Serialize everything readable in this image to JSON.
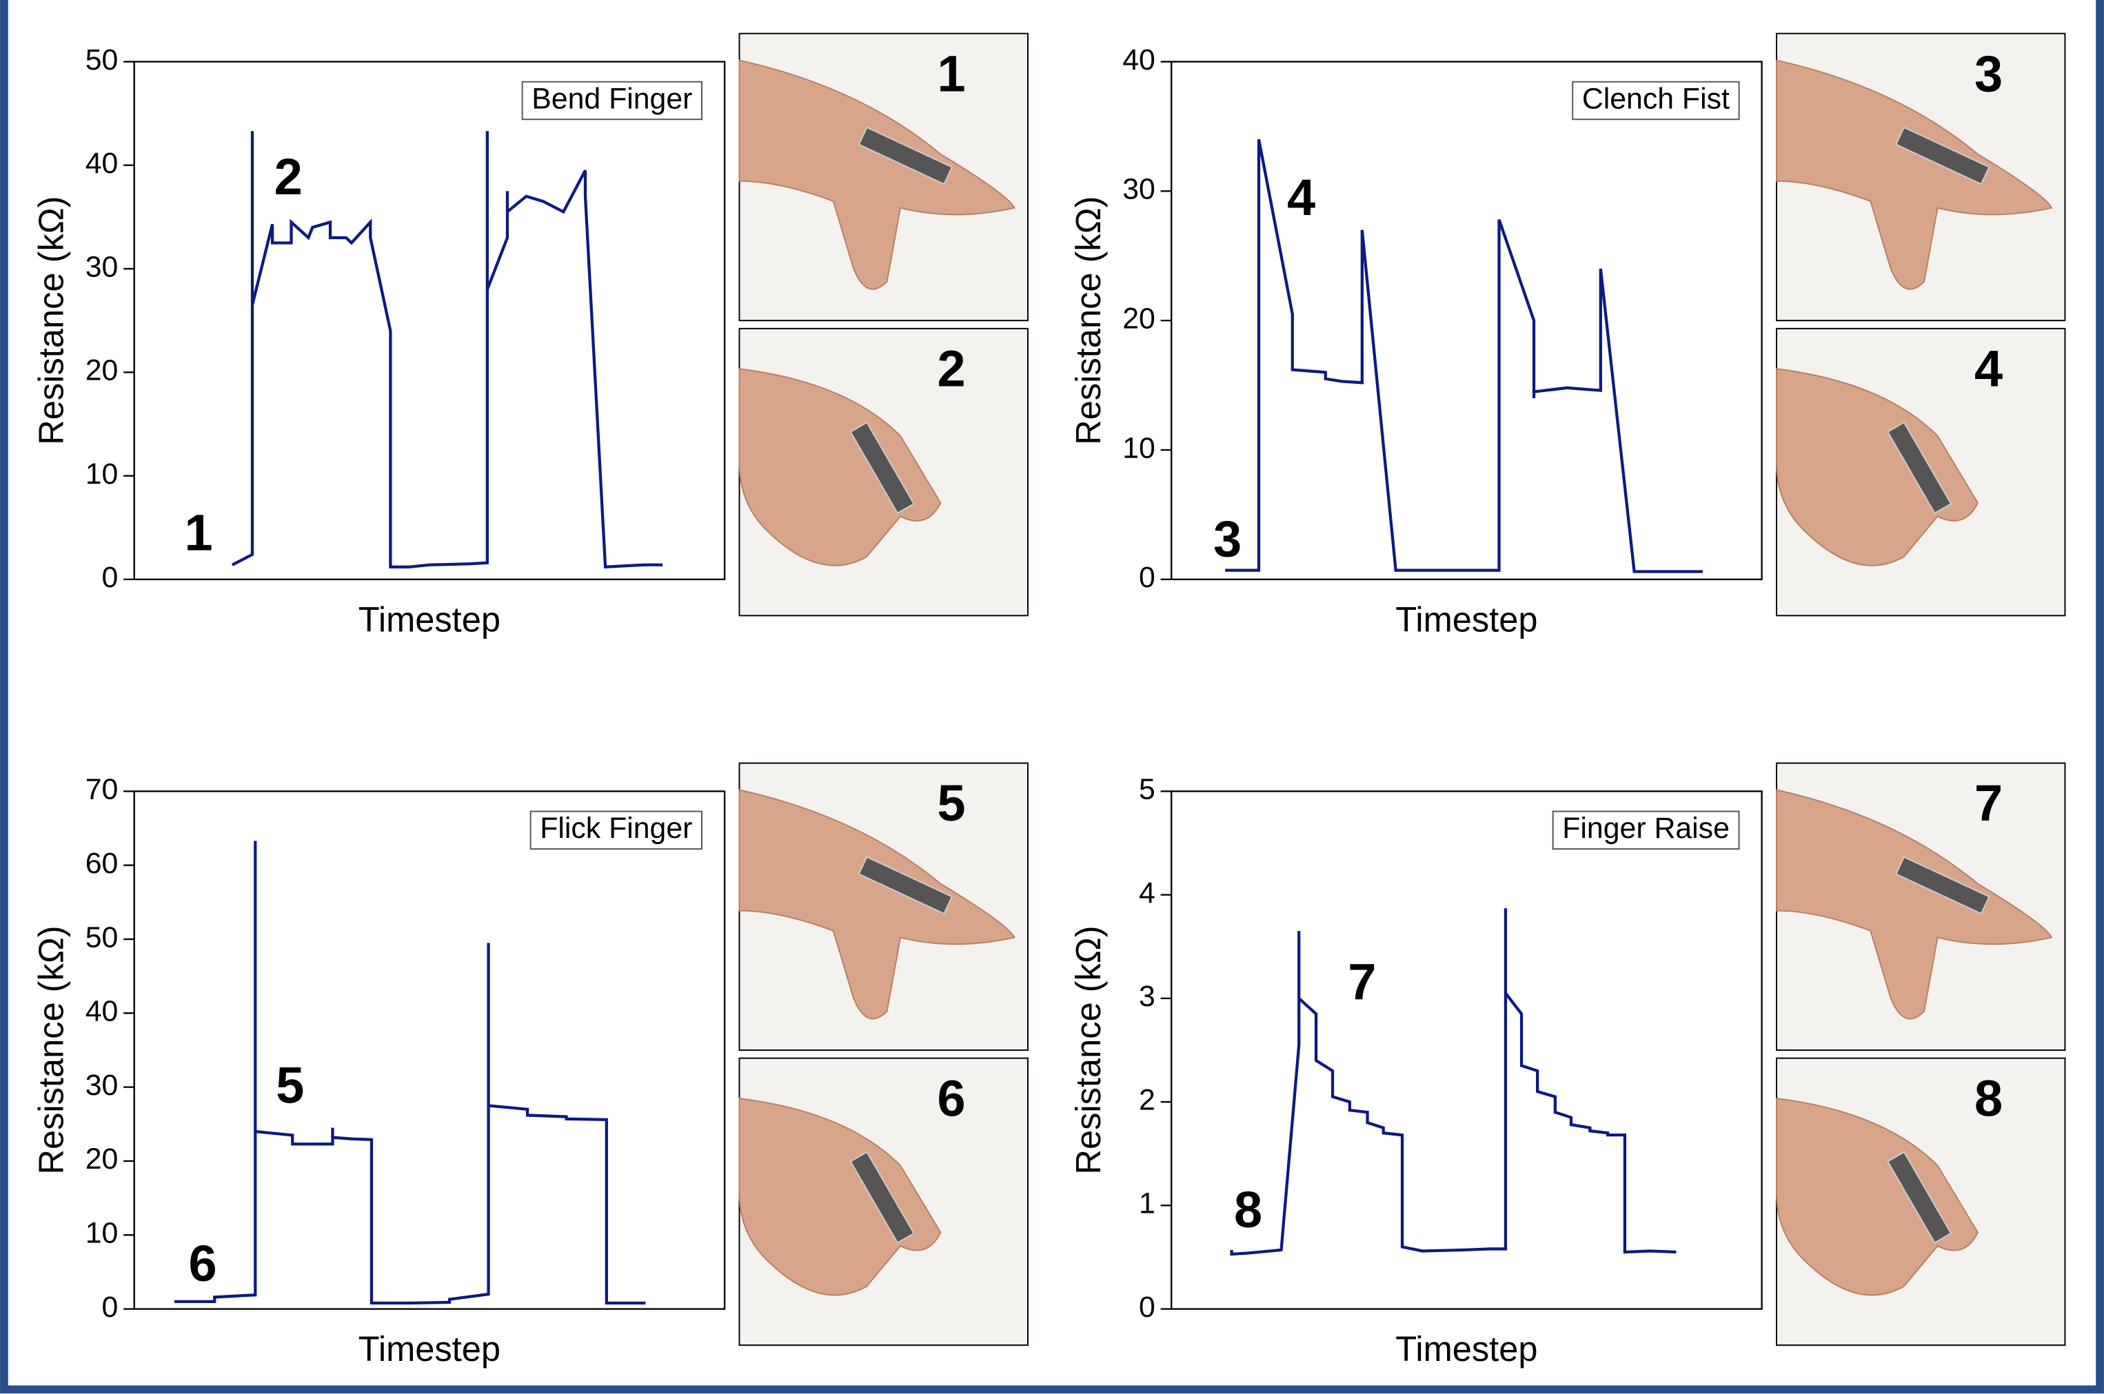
{
  "chart_data": [
    {
      "type": "line",
      "title": "Bend Finger",
      "xlabel": "Timestep",
      "ylabel": "Resistance (kΩ)",
      "xlim": [
        0,
        100
      ],
      "ylim": [
        0,
        50
      ],
      "yticks": [
        0,
        10,
        20,
        30,
        40,
        50
      ],
      "color": "#0d1a80",
      "x": [
        16.6,
        20,
        20,
        20,
        23.4,
        23.4,
        26.6,
        26.6,
        29.5,
        30.2,
        33.2,
        33.2,
        35.9,
        36.8,
        40,
        40,
        43.4,
        43.4,
        46.6,
        50,
        56.8,
        59.8,
        59.8,
        59.8,
        63.2,
        63.2,
        63.2,
        66.4,
        69.3,
        72.7,
        76.4,
        76.4,
        79.8,
        83,
        86.4,
        89.5
      ],
      "values": [
        1.4,
        2.4,
        43.3,
        26.5,
        34.3,
        32.5,
        32.5,
        34.5,
        33,
        34,
        34.5,
        33,
        33,
        32.5,
        34.5,
        33,
        24,
        1.2,
        1.2,
        1.4,
        1.5,
        1.6,
        43.3,
        28,
        33,
        37.5,
        35.5,
        37,
        36.5,
        35.5,
        39.5,
        37,
        1.2,
        1.3,
        1.4,
        1.4
      ],
      "annotations": [
        {
          "text": "1",
          "x": 10.9,
          "y": 4.1
        },
        {
          "text": "2",
          "x": 26.1,
          "y": 38.5
        }
      ],
      "annotation_color": "#c00000",
      "photo_labels": [
        "1",
        "2"
      ]
    },
    {
      "type": "line",
      "title": "Clench Fist",
      "xlabel": "Timestep",
      "ylabel": "Resistance (kΩ)",
      "xlim": [
        0,
        100
      ],
      "ylim": [
        0,
        40
      ],
      "yticks": [
        0,
        10,
        20,
        30,
        40
      ],
      "color": "#0d1a80",
      "x": [
        9.1,
        14.8,
        14.8,
        20.5,
        20.5,
        26.1,
        26.1,
        28.9,
        32.3,
        32.3,
        38,
        43.6,
        55.5,
        55.5,
        61.4,
        61.4,
        61.4,
        67,
        72.7,
        72.7,
        78.4,
        84.1,
        90
      ],
      "values": [
        0.7,
        0.7,
        34,
        20.5,
        16.2,
        16,
        15.5,
        15.3,
        15.2,
        27,
        0.7,
        0.7,
        0.7,
        27.8,
        20,
        14,
        14.5,
        14.8,
        14.6,
        24,
        0.6,
        0.6,
        0.6
      ],
      "annotations": [
        {
          "text": "3",
          "x": 9.5,
          "y": 2.8
        },
        {
          "text": "4",
          "x": 22,
          "y": 29.2
        }
      ],
      "annotation_color": "#c00000",
      "photo_labels": [
        "3",
        "4"
      ]
    },
    {
      "type": "line",
      "title": "Flick Finger",
      "xlabel": "Timestep",
      "ylabel": "Resistance (kΩ)",
      "xlim": [
        0,
        100
      ],
      "ylim": [
        0,
        70
      ],
      "yticks": [
        0,
        10,
        20,
        30,
        40,
        50,
        60,
        70
      ],
      "color": "#0d1a80",
      "x": [
        6.8,
        13.6,
        13.6,
        20.5,
        20.5,
        20.5,
        26.8,
        26.8,
        30,
        33.6,
        33.6,
        33.6,
        36.8,
        40.2,
        40.2,
        46.8,
        53.4,
        53.4,
        60,
        60,
        60,
        66.6,
        66.6,
        73.2,
        73.2,
        80,
        80,
        86.6
      ],
      "values": [
        1,
        1,
        1.6,
        1.9,
        63.3,
        24,
        23.5,
        22.3,
        22.3,
        22.3,
        24.5,
        23.2,
        23,
        22.9,
        0.8,
        0.8,
        0.9,
        1.3,
        2,
        49.5,
        27.5,
        27,
        26.2,
        26,
        25.7,
        25.6,
        0.8,
        0.8
      ],
      "annotations": [
        {
          "text": "6",
          "x": 11.6,
          "y": 5.6
        },
        {
          "text": "5",
          "x": 26.4,
          "y": 29.7
        }
      ],
      "annotation_color": "#c00000",
      "photo_labels": [
        "5",
        "6"
      ]
    },
    {
      "type": "line",
      "title": "Finger Raise",
      "xlabel": "Timestep",
      "ylabel": "Resistance (kΩ)",
      "xlim": [
        0,
        100
      ],
      "ylim": [
        0,
        5
      ],
      "yticks": [
        0,
        1,
        2,
        3,
        4,
        5
      ],
      "color": "#0d1a80",
      "x": [
        10.2,
        10.2,
        13,
        18.6,
        21.6,
        21.6,
        21.6,
        24.5,
        24.5,
        27.3,
        27.3,
        30.2,
        30.2,
        33.2,
        33.2,
        35.9,
        35.9,
        39.1,
        39.1,
        42.5,
        49.3,
        53.9,
        56.6,
        56.6,
        56.6,
        59.3,
        59.3,
        62,
        62,
        65,
        65,
        67.7,
        67.7,
        70.9,
        70.9,
        73.9,
        73.9,
        76.8,
        76.8,
        81.1,
        85.5
      ],
      "values": [
        0.57,
        0.53,
        0.54,
        0.57,
        2.55,
        3.65,
        3.0,
        2.85,
        2.4,
        2.3,
        2.05,
        2.0,
        1.92,
        1.9,
        1.8,
        1.75,
        1.7,
        1.68,
        0.6,
        0.56,
        0.57,
        0.58,
        0.58,
        3.87,
        3.05,
        2.85,
        2.35,
        2.3,
        2.1,
        2.05,
        1.9,
        1.85,
        1.78,
        1.75,
        1.72,
        1.7,
        1.68,
        1.68,
        0.55,
        0.56,
        0.55
      ],
      "annotations": [
        {
          "text": "8",
          "x": 13,
          "y": 0.92
        },
        {
          "text": "7",
          "x": 32.3,
          "y": 3.12
        }
      ],
      "annotation_color": "#c00000",
      "photo_labels": [
        "7",
        "8"
      ]
    }
  ]
}
